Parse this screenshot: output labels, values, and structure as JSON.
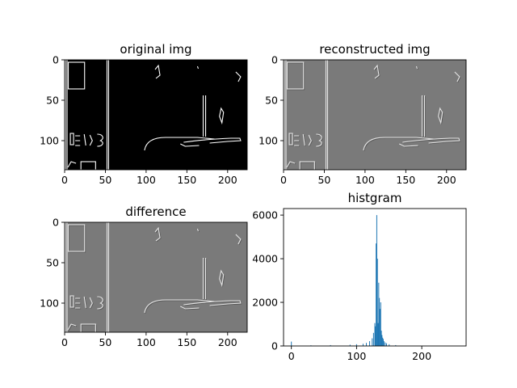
{
  "figure": {
    "background": "#ffffff",
    "text_color": "#000000",
    "bar_color": "#1f77b4"
  },
  "chart_data": [
    {
      "type": "image",
      "title": "original img",
      "image_style": "binary-edges",
      "background_color": "#000000",
      "edge_color": "#ffffff",
      "xlim": [
        0,
        224
      ],
      "ylim": [
        0,
        136
      ],
      "y_inverted": true,
      "xticks": [
        0,
        50,
        100,
        150,
        200
      ],
      "yticks": [
        0,
        50,
        100
      ]
    },
    {
      "type": "image",
      "title": "reconstructed img",
      "image_style": "gray-edges",
      "background_color": "#7a7a7a",
      "edge_color": "#e6e6e6",
      "xlim": [
        0,
        224
      ],
      "ylim": [
        0,
        136
      ],
      "y_inverted": true,
      "xticks": [
        0,
        50,
        100,
        150,
        200
      ],
      "yticks": [
        0,
        50,
        100
      ]
    },
    {
      "type": "image",
      "title": "difference",
      "image_style": "gray-edges",
      "background_color": "#7a7a7a",
      "edge_color": "#e6e6e6",
      "xlim": [
        0,
        224
      ],
      "ylim": [
        0,
        136
      ],
      "y_inverted": true,
      "xticks": [
        0,
        50,
        100,
        150,
        200
      ],
      "yticks": [
        0,
        50,
        100
      ]
    },
    {
      "type": "bar",
      "title": "histgram",
      "xlim": [
        -12,
        268
      ],
      "ylim": [
        0,
        6300
      ],
      "xticks": [
        0,
        100,
        200
      ],
      "yticks": [
        0,
        2000,
        4000,
        6000
      ],
      "x": [
        0,
        30,
        60,
        90,
        100,
        110,
        115,
        120,
        124,
        126,
        128,
        129,
        130,
        131,
        132,
        133,
        134,
        135,
        136,
        137,
        138,
        139,
        140,
        141,
        142,
        144,
        146,
        150,
        160
      ],
      "values": [
        200,
        30,
        40,
        60,
        80,
        100,
        140,
        220,
        350,
        600,
        1050,
        900,
        4700,
        6000,
        4000,
        1050,
        2900,
        2200,
        1700,
        2000,
        700,
        500,
        380,
        320,
        220,
        160,
        120,
        80,
        40
      ]
    }
  ]
}
